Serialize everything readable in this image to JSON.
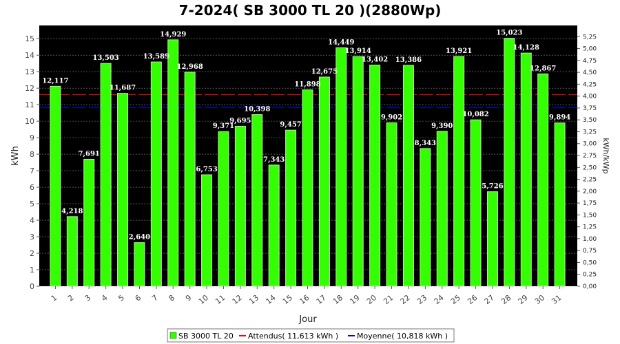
{
  "chart_data": {
    "type": "bar",
    "title": "7-2024( SB 3000 TL 20 )(2880Wp)",
    "xlabel": "Jour",
    "ylabel": "kWh",
    "ylabel_right": "kWh/kWp",
    "categories": [
      "1",
      "2",
      "3",
      "4",
      "5",
      "6",
      "7",
      "8",
      "9",
      "10",
      "11",
      "12",
      "13",
      "14",
      "15",
      "16",
      "17",
      "18",
      "19",
      "20",
      "21",
      "22",
      "23",
      "24",
      "25",
      "26",
      "27",
      "28",
      "29",
      "30",
      "31"
    ],
    "series": [
      {
        "name": "SB 3000 TL 20",
        "color": "#33ff00",
        "values": [
          12.117,
          4.218,
          7.691,
          13.503,
          11.687,
          2.64,
          13.589,
          14.929,
          12.968,
          6.753,
          9.371,
          9.695,
          10.398,
          7.343,
          9.457,
          11.898,
          12.675,
          14.449,
          13.914,
          13.402,
          9.902,
          13.386,
          8.343,
          9.39,
          13.921,
          10.082,
          5.726,
          15.023,
          14.128,
          12.867,
          9.894
        ],
        "labels": [
          "12,117",
          "4,218",
          "7,691",
          "13,503",
          "11,687",
          "2,640",
          "13,589",
          "14,929",
          "12,968",
          "6,753",
          "9,371",
          "9,695",
          "10,398",
          "7,343",
          "9,457",
          "11,898",
          "12,675",
          "14,449",
          "13,914",
          "13,402",
          "9,902",
          "13,386",
          "8,343",
          "9,390",
          "13,921",
          "10,082",
          "5,726",
          "15,023",
          "14,128",
          "12,867",
          "9,894"
        ]
      }
    ],
    "reference_lines": [
      {
        "name": "Attendus( 11,613 kWh )",
        "value": 11.613,
        "color": "#ff0000"
      },
      {
        "name": "Moyenne( 10,818 kWh )",
        "value": 10.818,
        "color": "#0000ff"
      }
    ],
    "ylim": [
      0,
      15.8
    ],
    "yticks": [
      0,
      1,
      2,
      3,
      4,
      5,
      6,
      7,
      8,
      9,
      10,
      11,
      12,
      13,
      14,
      15
    ],
    "y2lim": [
      0,
      5.486
    ],
    "y2ticks": [
      "0,00",
      "0,25",
      "0,50",
      "0,75",
      "1,00",
      "1,25",
      "1,50",
      "1,75",
      "2,00",
      "2,25",
      "2,50",
      "2,75",
      "3,00",
      "3,25",
      "3,50",
      "3,75",
      "4,00",
      "4,25",
      "4,50",
      "4,75",
      "5,00",
      "5,25"
    ],
    "y2tick_values": [
      0,
      0.25,
      0.5,
      0.75,
      1,
      1.25,
      1.5,
      1.75,
      2,
      2.25,
      2.5,
      2.75,
      3,
      3.25,
      3.5,
      3.75,
      4,
      4.25,
      4.5,
      4.75,
      5,
      5.25
    ],
    "plot_background": "#000000",
    "grid": true,
    "legend_position": "bottom"
  }
}
